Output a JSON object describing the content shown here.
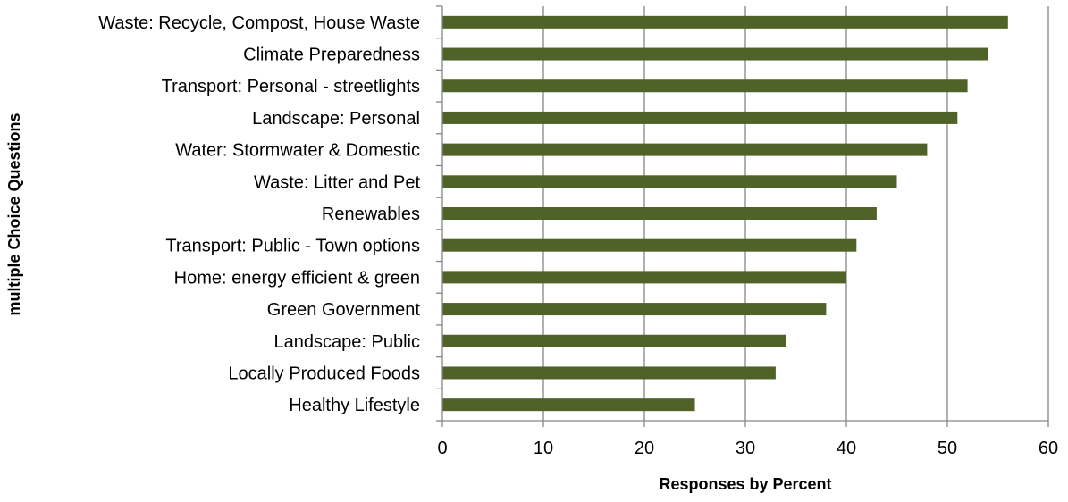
{
  "chart_data": {
    "type": "bar",
    "orientation": "horizontal",
    "title": "",
    "xlabel": "Responses by Percent",
    "ylabel": "multiple Choice Questions",
    "categories": [
      "Waste: Recycle, Compost, House Waste",
      "Climate Preparedness",
      "Transport: Personal - streetlights",
      "Landscape: Personal",
      "Water: Stormwater & Domestic",
      "Waste: Litter and Pet",
      "Renewables",
      "Transport: Public - Town options",
      "Home: energy efficient & green",
      "Green Government",
      "Landscape: Public",
      "Locally Produced Foods",
      "Healthy Lifestyle"
    ],
    "values": [
      56,
      54,
      52,
      51,
      48,
      45,
      43,
      41,
      40,
      38,
      34,
      33,
      25
    ],
    "xlim": [
      0,
      60
    ],
    "xticks": [
      0,
      10,
      20,
      30,
      40,
      50,
      60
    ],
    "grid": "vertical",
    "legend": "none",
    "colors": {
      "bar": "#4f6228",
      "grid": "#868686",
      "axis": "#868686"
    }
  }
}
